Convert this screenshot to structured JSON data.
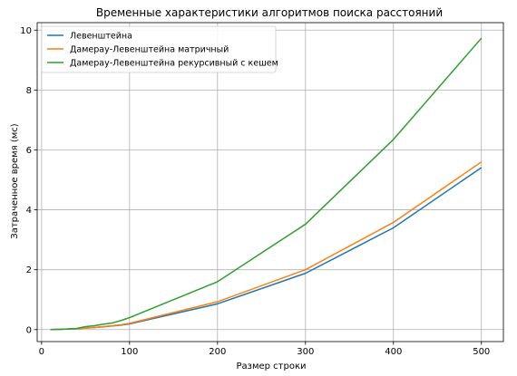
{
  "chart_data": {
    "type": "line",
    "title": "Временные характеристики алгоритмов поиска расстояний",
    "xlabel": "Размер строки",
    "ylabel": "Затраченное время (мс)",
    "xlim": [
      -5,
      525
    ],
    "ylim": [
      -0.4,
      10.25
    ],
    "xticks": [
      0,
      100,
      200,
      300,
      400,
      500
    ],
    "yticks": [
      0,
      2,
      4,
      6,
      8,
      10
    ],
    "grid": true,
    "legend_position": "top-left",
    "x": [
      10,
      20,
      30,
      40,
      50,
      60,
      70,
      80,
      90,
      100,
      200,
      300,
      400,
      500
    ],
    "series": [
      {
        "name": "Левенштейна",
        "color": "#1f77b4",
        "values": [
          0.0,
          0.01,
          0.02,
          0.03,
          0.05,
          0.07,
          0.09,
          0.12,
          0.15,
          0.19,
          0.86,
          1.88,
          3.4,
          5.41
        ]
      },
      {
        "name": "Дамерау-Левенштейна матричный",
        "color": "#ff7f0e",
        "values": [
          0.0,
          0.01,
          0.02,
          0.03,
          0.05,
          0.07,
          0.1,
          0.13,
          0.16,
          0.21,
          0.93,
          2.0,
          3.58,
          5.6
        ]
      },
      {
        "name": "Дамерау-Левенштейна рекурсивный с кешем",
        "color": "#2ca02c",
        "values": [
          0.0,
          0.01,
          0.02,
          0.04,
          0.1,
          0.13,
          0.18,
          0.22,
          0.3,
          0.4,
          1.6,
          3.52,
          6.35,
          9.73
        ]
      }
    ]
  }
}
